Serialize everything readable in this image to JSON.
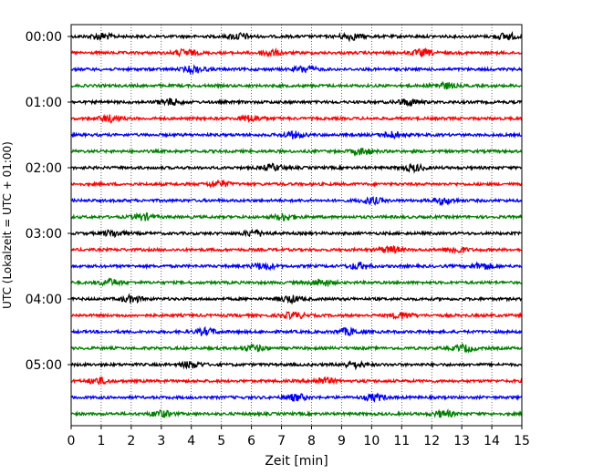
{
  "chart_data": {
    "type": "line",
    "title": "",
    "xlabel": "Zeit  [min]",
    "ylabel": "UTC (Lokalzeit = UTC + 01:00)",
    "xlim": [
      0,
      15
    ],
    "x_ticks": [
      "0",
      "1",
      "2",
      "3",
      "4",
      "5",
      "6",
      "7",
      "8",
      "9",
      "10",
      "11",
      "12",
      "13",
      "14",
      "15"
    ],
    "y_ticks": [
      "00:00",
      "01:00",
      "02:00",
      "03:00",
      "04:00",
      "05:00"
    ],
    "grid": "vertical-dotted",
    "trace_interval_min": 15,
    "trace_colors": [
      "#000000",
      "#ff0000",
      "#0000ff",
      "#008000"
    ],
    "traces": [
      {
        "start": "00:00",
        "bursts_min": [
          1.0,
          5.6,
          9.3,
          14.5
        ]
      },
      {
        "start": "00:15",
        "bursts_min": [
          3.8,
          6.6,
          11.7
        ]
      },
      {
        "start": "00:30",
        "bursts_min": [
          7.8,
          4.1
        ]
      },
      {
        "start": "00:45",
        "bursts_min": [
          12.4
        ]
      },
      {
        "start": "01:00",
        "bursts_min": [
          3.3,
          11.2
        ]
      },
      {
        "start": "01:15",
        "bursts_min": [
          1.3,
          6.0
        ]
      },
      {
        "start": "01:30",
        "bursts_min": [
          7.4,
          10.7
        ]
      },
      {
        "start": "01:45",
        "bursts_min": [
          9.7
        ]
      },
      {
        "start": "02:00",
        "bursts_min": [
          11.4,
          6.7
        ]
      },
      {
        "start": "02:15",
        "bursts_min": [
          4.9
        ]
      },
      {
        "start": "02:30",
        "bursts_min": [
          10.0,
          12.4
        ]
      },
      {
        "start": "02:45",
        "bursts_min": [
          7.1,
          2.4
        ]
      },
      {
        "start": "03:00",
        "bursts_min": [
          6.1,
          1.4
        ]
      },
      {
        "start": "03:15",
        "bursts_min": [
          10.6,
          12.8
        ]
      },
      {
        "start": "03:30",
        "bursts_min": [
          6.4,
          9.6,
          13.7
        ]
      },
      {
        "start": "03:45",
        "bursts_min": [
          8.3,
          1.3
        ]
      },
      {
        "start": "04:00",
        "bursts_min": [
          2.0,
          7.3
        ]
      },
      {
        "start": "04:15",
        "bursts_min": [
          7.4,
          11.0
        ]
      },
      {
        "start": "04:30",
        "bursts_min": [
          4.5,
          9.2
        ]
      },
      {
        "start": "04:45",
        "bursts_min": [
          6.1,
          13.1
        ]
      },
      {
        "start": "05:00",
        "bursts_min": [
          4.0,
          9.4
        ]
      },
      {
        "start": "05:15",
        "bursts_min": [
          0.9,
          8.4
        ]
      },
      {
        "start": "05:30",
        "bursts_min": [
          7.5,
          10.1
        ]
      },
      {
        "start": "05:45",
        "bursts_min": [
          3.0,
          12.4
        ]
      }
    ]
  }
}
